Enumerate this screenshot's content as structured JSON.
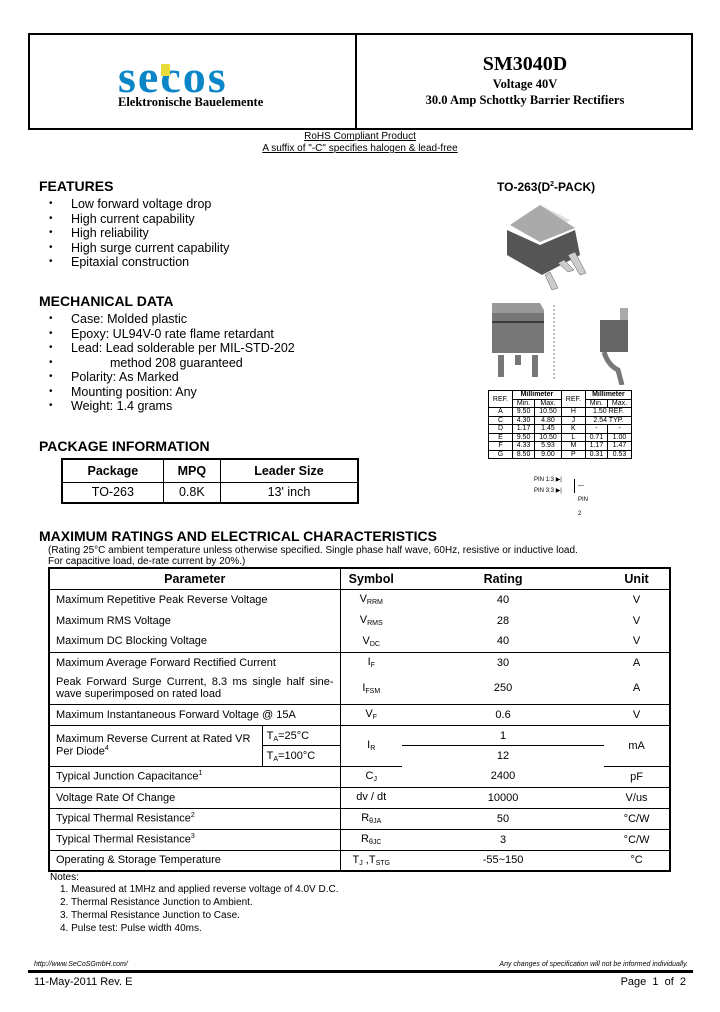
{
  "header": {
    "logo_text": "secos",
    "company": "Elektronische Bauelemente",
    "part": "SM3040D",
    "voltage": "Voltage 40V",
    "desc": "30.0 Amp Schottky Barrier Rectifiers",
    "colors": {
      "logo_blue": "#0a86c8",
      "logo_yellow": "#e8dc3c"
    }
  },
  "rohs": {
    "line1": "RoHS Compliant Product",
    "line2": "A suffix of \"-C\" specifies halogen & lead-free"
  },
  "features": {
    "title": "FEATURES",
    "items": [
      "Low forward voltage drop",
      "High current capability",
      "High reliability",
      "High surge current capability",
      "Epitaxial construction"
    ]
  },
  "mechanical": {
    "title": "MECHANICAL DATA",
    "items": [
      "Case: Molded plastic",
      "Epoxy: UL94V-0 rate flame retardant",
      "Lead: Lead solderable per MIL-STD-202",
      "method 208 guaranteed",
      "Polarity: As Marked",
      "Mounting position: Any",
      "Weight: 1.4 grams"
    ]
  },
  "package_info": {
    "title": "PACKAGE INFORMATION",
    "headers": [
      "Package",
      "MPQ",
      "Leader Size"
    ],
    "row": [
      "TO-263",
      "0.8K",
      "13' inch"
    ]
  },
  "drawing": {
    "title": "TO-263(D",
    "title_sup": "2",
    "title_end": "-PACK)",
    "pin1": "PIN 1:3",
    "pin3": "PIN 3:3",
    "pin2": "PIN 2",
    "dim_table": {
      "ref": "REF.",
      "unit": "Millimeter",
      "min": "Min.",
      "max": "Max.",
      "rows": [
        [
          "A",
          "9.50",
          "10.50",
          "H",
          "1.50 REF.",
          ""
        ],
        [
          "C",
          "4.30",
          "4.80",
          "J",
          "2.54 TYP.",
          ""
        ],
        [
          "D",
          "1.17",
          "1.45",
          "K",
          "-",
          "-"
        ],
        [
          "E",
          "9.50",
          "10.50",
          "L",
          "0.71",
          "1.00"
        ],
        [
          "F",
          "4.33",
          "5.93",
          "M",
          "1.17",
          "1.47"
        ],
        [
          "G",
          "8.50",
          "9.00",
          "P",
          "0.31",
          "0.53"
        ]
      ]
    }
  },
  "ratings": {
    "title": "MAXIMUM RATINGS AND ELECTRICAL CHARACTERISTICS",
    "note1": "(Rating 25°C ambient temperature unless otherwise specified. Single phase half wave, 60Hz, resistive or inductive load.",
    "note2": "For capacitive load, de-rate current by 20%.)",
    "headers": [
      "Parameter",
      "Symbol",
      "Rating",
      "Unit"
    ],
    "rows": [
      {
        "p": "Maximum Repetitive Peak Reverse Voltage",
        "s": "V",
        "sub": "RRM",
        "r": "40",
        "u": "V"
      },
      {
        "p": "Maximum RMS Voltage",
        "s": "V",
        "sub": "RMS",
        "r": "28",
        "u": "V"
      },
      {
        "p": "Maximum DC Blocking Voltage",
        "s": "V",
        "sub": "DC",
        "r": "40",
        "u": "V"
      },
      {
        "p": "Maximum Average Forward Rectified Current",
        "s": "I",
        "sub": "F",
        "r": "30",
        "u": "A"
      },
      {
        "p": "Peak Forward Surge Current, 8.3 ms single half sine-wave superimposed on rated load",
        "s": "I",
        "sub": "FSM",
        "r": "250",
        "u": "A"
      },
      {
        "p": "Maximum Instantaneous Forward Voltage @ 15A",
        "s": "V",
        "sub": "F",
        "r": "0.6",
        "u": "V"
      },
      {
        "p": "Maximum Reverse Current at Rated VR Per Diode",
        "sup": "4",
        "t1": "T",
        "t1sub": "A",
        "t1end": "=25°C",
        "t2": "T",
        "t2sub": "A",
        "t2end": "=100°C",
        "s": "I",
        "sub": "R",
        "r1": "1",
        "r2": "12",
        "u": "mA"
      },
      {
        "p": "Typical Junction Capacitance",
        "sup": "1",
        "s": "C",
        "sub": "J",
        "r": "2400",
        "u": "pF"
      },
      {
        "p": "Voltage Rate Of Change",
        "s": "dv / dt",
        "sub": "",
        "r": "10000",
        "u": "V/us"
      },
      {
        "p": "Typical Thermal Resistance",
        "sup": "2",
        "s": "R",
        "sub": "θJA",
        "r": "50",
        "u": "°C/W"
      },
      {
        "p": "Typical Thermal Resistance",
        "sup": "3",
        "s": "R",
        "sub": "θJC",
        "r": "3",
        "u": "°C/W"
      },
      {
        "p": "Operating & Storage Temperature",
        "s": "T",
        "sub": "J",
        "s2": " ,T",
        "sub2": "STG",
        "r": "-55~150",
        "u": "°C"
      }
    ]
  },
  "notes": {
    "title": "Notes:",
    "items": [
      "1.   Measured at 1MHz and applied reverse voltage of 4.0V D.C.",
      "2.   Thermal Resistance Junction to Ambient.",
      "3.   Thermal Resistance Junction to Case.",
      "4.   Pulse test: Pulse width 40ms."
    ]
  },
  "footer": {
    "url": "http://www.SeCoSGmbH.com/",
    "disclaimer": "Any changes of specification will not be informed individually.",
    "date": "11-May-2011 Rev. E",
    "page": "Page  1  of  2"
  }
}
